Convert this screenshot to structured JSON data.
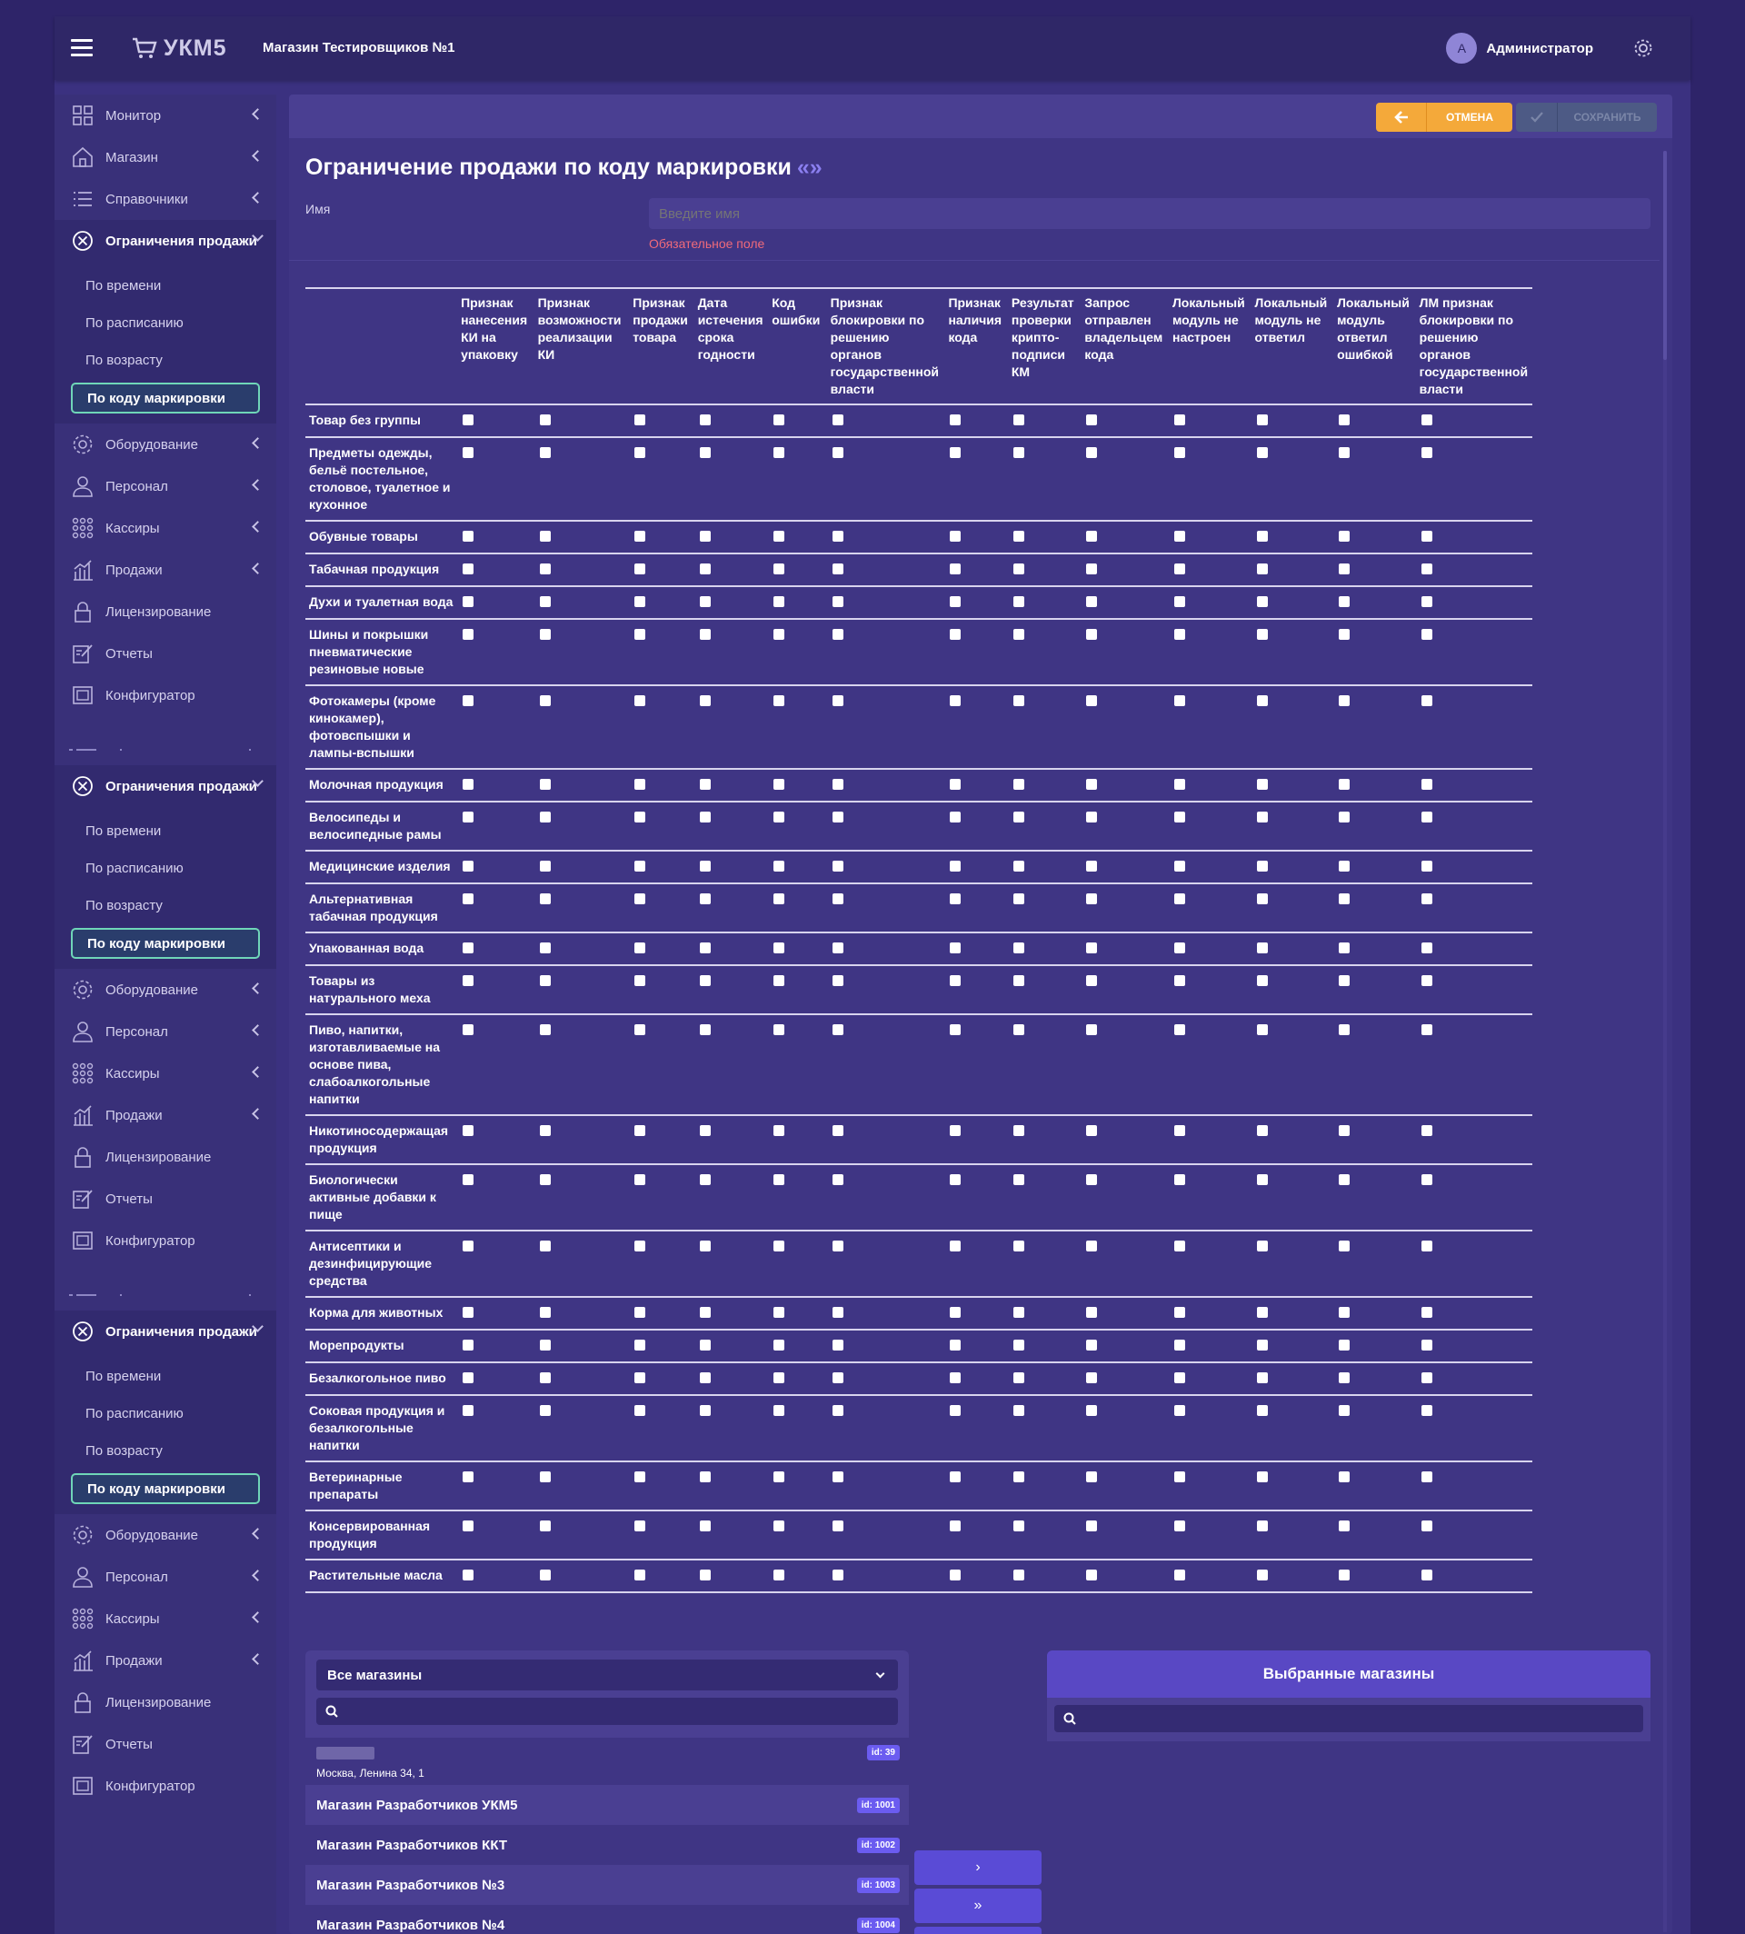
{
  "header": {
    "shop_name": "Магазин Тестировщиков №1",
    "logo_text": "УКМ5",
    "user_initial": "А",
    "user_name": "Администратор"
  },
  "sidebar": {
    "groups": [
      {
        "items_top": [
          "Монитор",
          "Магазин",
          "Справочники"
        ]
      },
      {},
      {}
    ],
    "menu_open": "Ограничения продажи",
    "sub_items": [
      "По времени",
      "По расписанию",
      "По возрасту",
      "По коду маркировки"
    ],
    "menu_rest": [
      "Оборудование",
      "Персонал",
      "Кассиры",
      "Продажи",
      "Лицензирование",
      "Отчеты",
      "Конфигуратор"
    ],
    "top_items": [
      "Монитор",
      "Магазин",
      "Справочники"
    ]
  },
  "actions": {
    "cancel": "ОТМЕНА",
    "save": "СОХРАНИТЬ"
  },
  "page": {
    "title": "Ограничение продажи по коду маркировки",
    "title_quote": "«»",
    "name_label": "Имя",
    "name_placeholder": "Введите имя",
    "required": "Обязательное поле"
  },
  "table": {
    "columns": [
      "Признак нанесения КИ на упаковку",
      "Признак возможности реализации КИ",
      "Признак продажи товара",
      "Дата истечения срока годности",
      "Код ошибки",
      "Признак блокировки по решению органов государственной власти",
      "Признак наличия кода",
      "Результат проверки крипто-подписи КМ",
      "Запрос отправлен владельцем кода",
      "Локальный модуль не настроен",
      "Локальный модуль не ответил",
      "Локальный модуль ответил ошибкой",
      "ЛМ признак блокировки по решению органов государственной власти"
    ],
    "rows": [
      "Товар без группы",
      "Предметы одежды, бельё постельное, столовое, туалетное и кухонное",
      "Обувные товары",
      "Табачная продукция",
      "Духи и туалетная вода",
      "Шины и покрышки пневматические резиновые новые",
      "Фотокамеры (кроме кинокамер), фотовспышки и лампы-вспышки",
      "Молочная продукция",
      "Велосипеды и велосипедные рамы",
      "Медицинские изделия",
      "Альтернативная табачная продукция",
      "Упакованная вода",
      "Товары из натурального меха",
      "Пиво, напитки, изготавливаемые на основе пива, слабоалкогольные напитки",
      "Никотиносодержащая продукция",
      "Биологически активные добавки к пище",
      "Антисептики и дезинфицирующие средства",
      "Корма для животных",
      "Морепродукты",
      "Безалкогольное пиво",
      "Соковая продукция и безалкогольные напитки",
      "Ветеринарные препараты",
      "Консервированная продукция",
      "Растительные масла"
    ]
  },
  "stores": {
    "filter_value": "Все магазины",
    "selected_title": "Выбранные магазины",
    "first": {
      "address": "Москва, Ленина 34, 1",
      "badge": "id: 39"
    },
    "list": [
      {
        "name": "Магазин Разработчиков УКМ5",
        "badge": "id: 1001"
      },
      {
        "name": "Магазин Разработчиков ККТ",
        "badge": "id: 1002"
      },
      {
        "name": "Магазин Разработчиков №3",
        "badge": "id: 1003"
      },
      {
        "name": "Магазин Разработчиков №4",
        "badge": "id: 1004"
      }
    ],
    "move_one": "›",
    "move_all": "»"
  },
  "colors": {
    "bg": "#2e2469",
    "panel": "#3f3584",
    "accent": "#f4a93a",
    "active_border": "#6fd6b8",
    "required": "#f06a7a"
  }
}
